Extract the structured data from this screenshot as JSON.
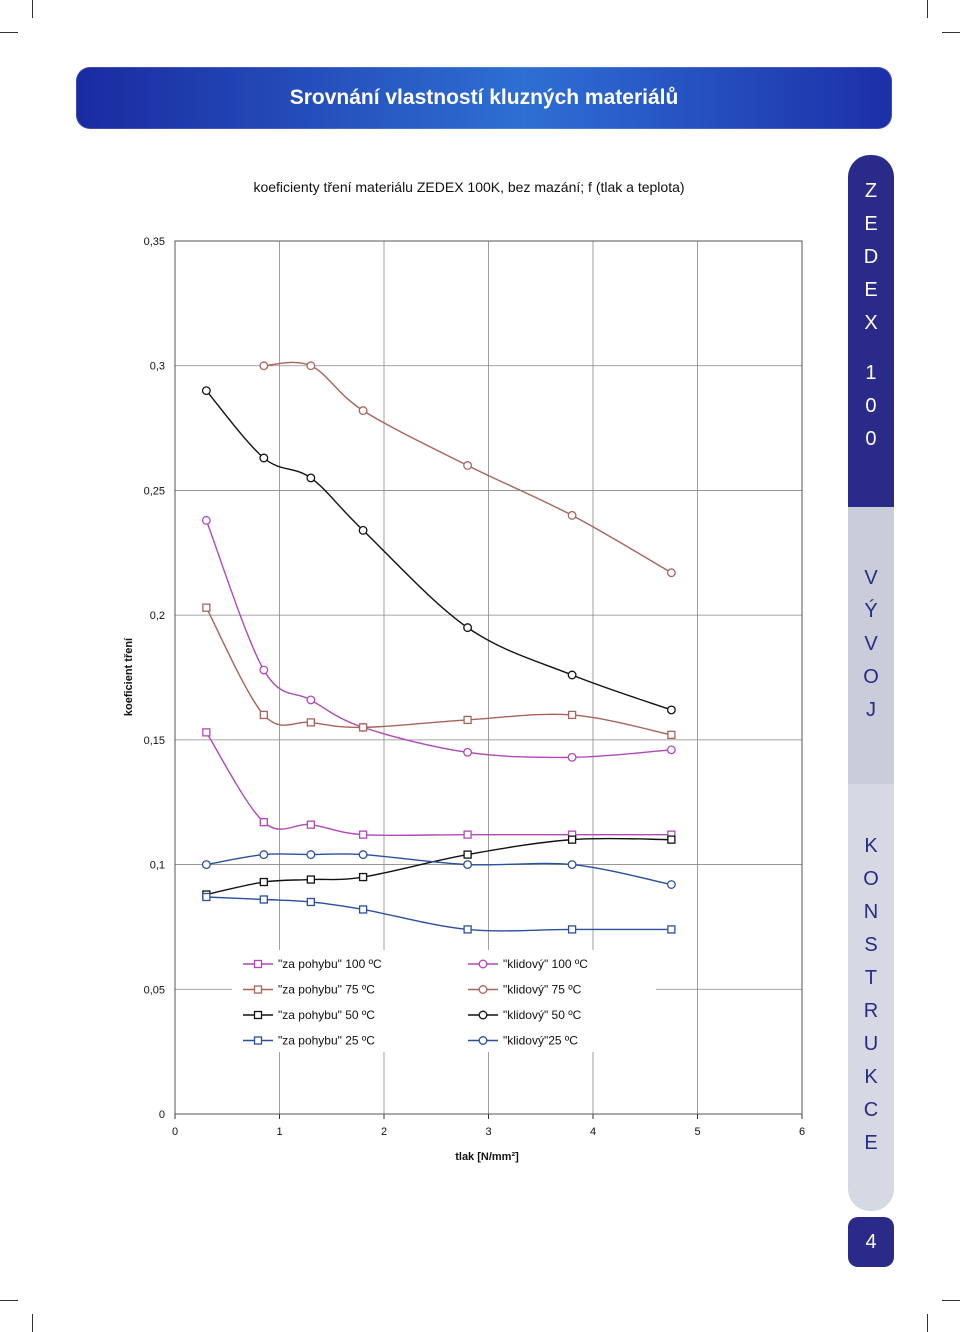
{
  "header": {
    "title": "Srovnání vlastností kluzných materiálů"
  },
  "side_tabs": [
    {
      "letters": [
        "Z",
        "E",
        "D",
        "E",
        "X",
        "1",
        "0",
        "0"
      ]
    },
    {
      "letters": [
        "V",
        "Ý",
        "V",
        "O",
        "J"
      ]
    },
    {
      "letters": [
        "K",
        "O",
        "N",
        "S",
        "T",
        "R",
        "U",
        "K",
        "C",
        "E"
      ]
    }
  ],
  "page_number": "4",
  "colors": {
    "banner": "#2a4fc4",
    "side_dark": "#2a2a88",
    "grid": "#888888"
  },
  "chart_data": {
    "type": "line",
    "title": "koeficienty tření materiálu ZEDEX 100K, bez mazání; f (tlak a teplota)",
    "xlabel": "tlak [N/mm²]",
    "ylabel": "koeficient tření",
    "xlim": [
      0,
      6
    ],
    "ylim": [
      0,
      0.35
    ],
    "x_ticks": [
      "0",
      "1",
      "2",
      "3",
      "4",
      "5",
      "6"
    ],
    "y_ticks": [
      "0",
      "0,05",
      "0,1",
      "0,15",
      "0,2",
      "0,25",
      "0,3",
      "0,35"
    ],
    "grid": true,
    "legend_position": "bottom-center",
    "series": [
      {
        "name": "\"za pohybu\" 100 ºC",
        "color": "#b048b8",
        "marker": "square",
        "points": [
          [
            0.3,
            0.153
          ],
          [
            0.85,
            0.117
          ],
          [
            1.3,
            0.116
          ],
          [
            1.8,
            0.112
          ],
          [
            2.8,
            0.112
          ],
          [
            3.8,
            0.112
          ],
          [
            4.75,
            0.112
          ]
        ]
      },
      {
        "name": "\"klidový\" 100 ºC",
        "color": "#b048b8",
        "marker": "circle",
        "points": [
          [
            0.3,
            0.238
          ],
          [
            0.85,
            0.178
          ],
          [
            1.3,
            0.166
          ],
          [
            1.8,
            0.155
          ],
          [
            2.8,
            0.145
          ],
          [
            3.8,
            0.143
          ],
          [
            4.75,
            0.146
          ]
        ]
      },
      {
        "name": "\"za pohybu\" 75 ºC",
        "color": "#a8645a",
        "marker": "square",
        "points": [
          [
            0.3,
            0.203
          ],
          [
            0.85,
            0.16
          ],
          [
            1.3,
            0.157
          ],
          [
            1.8,
            0.155
          ],
          [
            2.8,
            0.158
          ],
          [
            3.8,
            0.16
          ],
          [
            4.75,
            0.152
          ]
        ]
      },
      {
        "name": "\"klidový\" 75 ºC",
        "color": "#a8645a",
        "marker": "circle",
        "points": [
          [
            0.85,
            0.3
          ],
          [
            1.3,
            0.3
          ],
          [
            1.8,
            0.282
          ],
          [
            2.8,
            0.26
          ],
          [
            3.8,
            0.24
          ],
          [
            4.75,
            0.217
          ]
        ]
      },
      {
        "name": "\"za pohybu\" 50 ºC",
        "color": "#111111",
        "marker": "square",
        "points": [
          [
            0.3,
            0.088
          ],
          [
            0.85,
            0.093
          ],
          [
            1.3,
            0.094
          ],
          [
            1.8,
            0.095
          ],
          [
            2.8,
            0.104
          ],
          [
            3.8,
            0.11
          ],
          [
            4.75,
            0.11
          ]
        ]
      },
      {
        "name": "\"klidový\" 50 ºC",
        "color": "#111111",
        "marker": "circle",
        "points": [
          [
            0.3,
            0.29
          ],
          [
            0.85,
            0.263
          ],
          [
            1.3,
            0.255
          ],
          [
            1.8,
            0.234
          ],
          [
            2.8,
            0.195
          ],
          [
            3.8,
            0.176
          ],
          [
            4.75,
            0.162
          ]
        ]
      },
      {
        "name": "\"za pohybu\" 25 ºC",
        "color": "#2a4f9e",
        "marker": "square",
        "points": [
          [
            0.3,
            0.087
          ],
          [
            0.85,
            0.086
          ],
          [
            1.3,
            0.085
          ],
          [
            1.8,
            0.082
          ],
          [
            2.8,
            0.074
          ],
          [
            3.8,
            0.074
          ],
          [
            4.75,
            0.074
          ]
        ]
      },
      {
        "name": "\"klidový\"25 ºC",
        "color": "#2a4f9e",
        "marker": "circle",
        "points": [
          [
            0.3,
            0.1
          ],
          [
            0.85,
            0.104
          ],
          [
            1.3,
            0.104
          ],
          [
            1.8,
            0.104
          ],
          [
            2.8,
            0.1
          ],
          [
            3.8,
            0.1
          ],
          [
            4.75,
            0.092
          ]
        ]
      }
    ]
  }
}
